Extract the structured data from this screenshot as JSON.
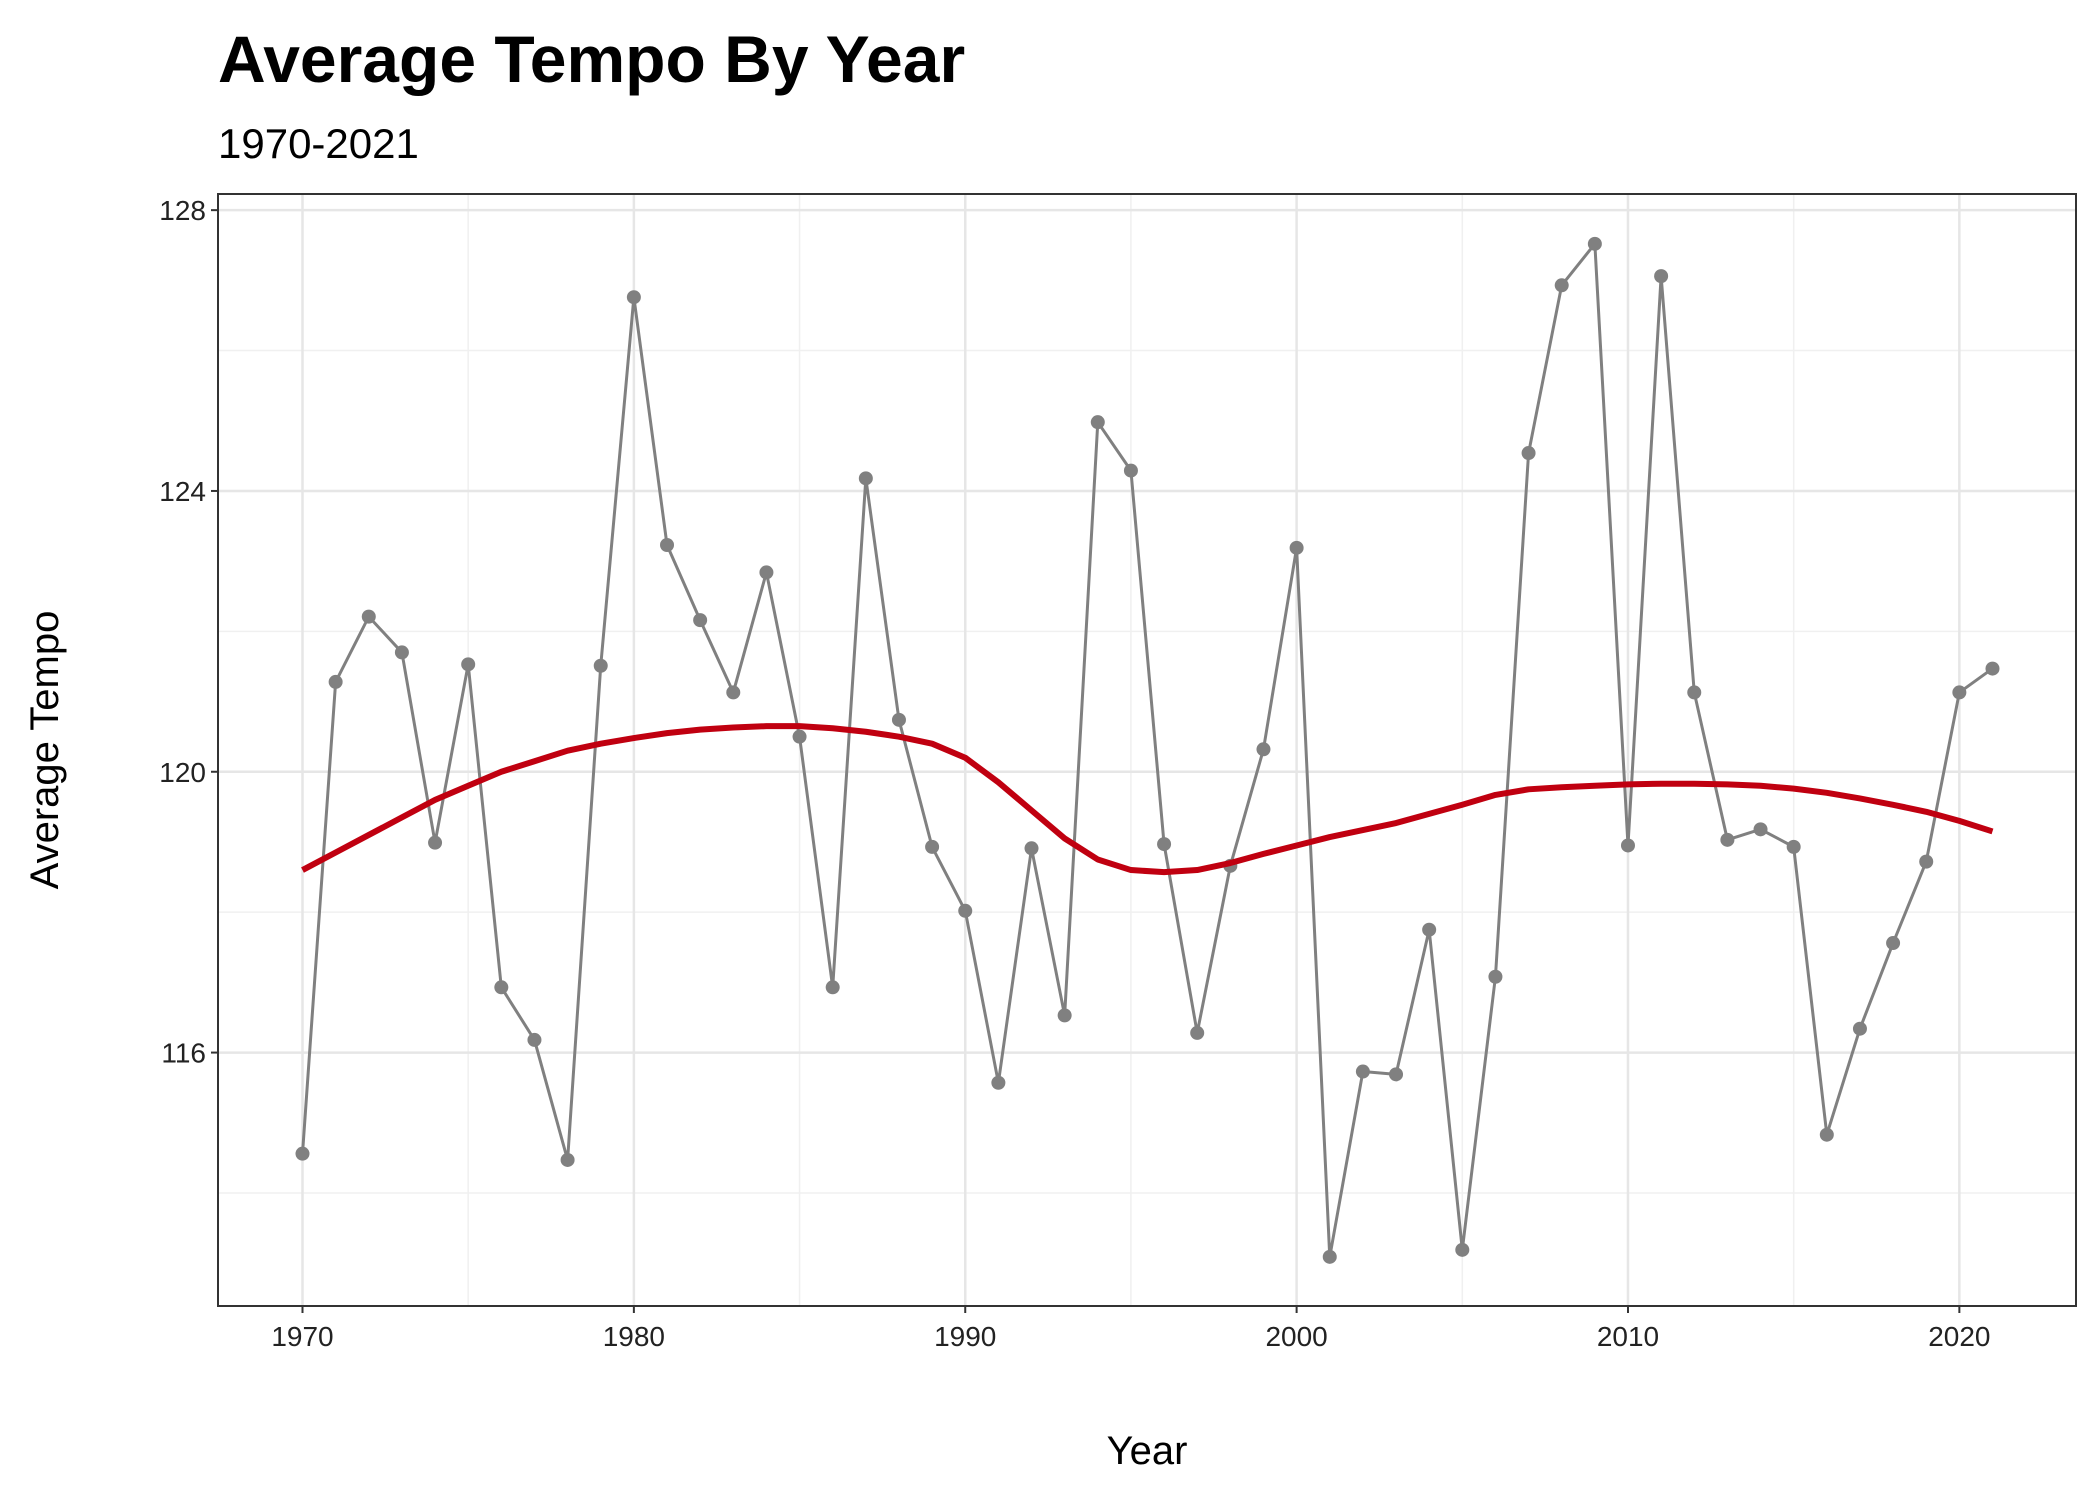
{
  "chart_data": {
    "type": "line",
    "title": "Average Tempo By Year",
    "subtitle": "1970-2021",
    "x_label": "Year",
    "y_label": "Average Tempo",
    "x": [
      1970,
      1971,
      1972,
      1973,
      1974,
      1975,
      1976,
      1977,
      1978,
      1979,
      1980,
      1981,
      1982,
      1983,
      1984,
      1985,
      1986,
      1987,
      1988,
      1989,
      1990,
      1991,
      1992,
      1993,
      1994,
      1995,
      1996,
      1997,
      1998,
      1999,
      2000,
      2001,
      2002,
      2003,
      2004,
      2005,
      2006,
      2007,
      2008,
      2009,
      2010,
      2011,
      2012,
      2013,
      2014,
      2015,
      2016,
      2017,
      2018,
      2019,
      2020,
      2021
    ],
    "series": [
      {
        "color": "#808080",
        "markers": true,
        "values": [
          114.56,
          121.28,
          122.21,
          121.7,
          118.99,
          121.53,
          116.93,
          116.18,
          114.47,
          121.51,
          126.76,
          123.23,
          122.16,
          121.13,
          122.84,
          120.5,
          116.93,
          124.18,
          120.74,
          118.93,
          118.02,
          115.57,
          118.91,
          116.53,
          124.98,
          124.29,
          118.97,
          116.28,
          118.66,
          120.32,
          123.19,
          113.09,
          115.73,
          115.69,
          117.75,
          113.19,
          117.08,
          124.54,
          126.93,
          127.52,
          118.95,
          127.06,
          121.13,
          119.03,
          119.18,
          118.93,
          114.83,
          116.34,
          117.56,
          118.72,
          121.13,
          121.47
        ]
      },
      {
        "color": "#c00010",
        "markers": false,
        "values": [
          118.6,
          118.85,
          119.1,
          119.35,
          119.6,
          119.8,
          120.0,
          120.15,
          120.3,
          120.4,
          120.48,
          120.55,
          120.6,
          120.63,
          120.65,
          120.65,
          120.62,
          120.57,
          120.5,
          120.4,
          120.2,
          119.85,
          119.45,
          119.05,
          118.75,
          118.6,
          118.57,
          118.6,
          118.7,
          118.83,
          118.95,
          119.07,
          119.17,
          119.27,
          119.4,
          119.53,
          119.67,
          119.75,
          119.78,
          119.8,
          119.82,
          119.83,
          119.83,
          119.82,
          119.8,
          119.76,
          119.7,
          119.62,
          119.53,
          119.43,
          119.3,
          119.15
        ]
      }
    ],
    "xlim": [
      1967.45,
      2023.52
    ],
    "ylim": [
      112.39,
      128.23
    ],
    "xticks": [
      1970,
      1980,
      1990,
      2000,
      2010,
      2020
    ],
    "yticks": [
      116,
      120,
      124,
      128
    ],
    "x_minor_ticks": [
      1975,
      1985,
      1995,
      2005,
      2015
    ],
    "y_minor_ticks": [
      114,
      118,
      122,
      126
    ],
    "grid": true
  }
}
